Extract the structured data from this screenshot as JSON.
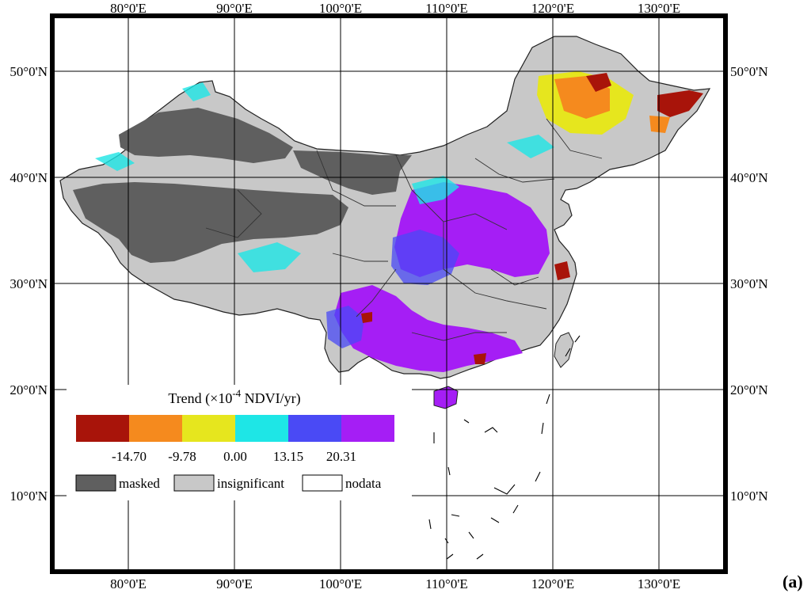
{
  "panel_label": "(a)",
  "axes": {
    "top_lon": [
      "80°0'E",
      "90°0'E",
      "100°0'E",
      "110°0'E",
      "120°0'E",
      "130°0'E"
    ],
    "bottom_lon": [
      "80°0'E",
      "90°0'E",
      "100°0'E",
      "110°0'E",
      "120°0'E",
      "130°0'E"
    ],
    "left_lat": [
      "50°0'N",
      "40°0'N",
      "30°0'N",
      "20°0'N",
      "10°0'N"
    ],
    "right_lat": [
      "50°0'N",
      "40°0'N",
      "30°0'N",
      "20°0'N",
      "10°0'N"
    ]
  },
  "legend": {
    "title_main": "Trend (×10",
    "title_sup": "-4",
    "title_tail": " NDVI/yr)",
    "bins": [
      {
        "color": "#a8140a"
      },
      {
        "color": "#f58a1e"
      },
      {
        "color": "#e6e61e"
      },
      {
        "color": "#1ee6e6"
      },
      {
        "color": "#4a4af5"
      },
      {
        "color": "#a51ef5"
      }
    ],
    "break_values": [
      "-14.70",
      "-9.78",
      "0.00",
      "13.15",
      "20.31"
    ],
    "categories": [
      {
        "label": "masked",
        "color": "#5f5f5f"
      },
      {
        "label": "insignificant",
        "color": "#c8c8c8"
      },
      {
        "label": "nodata",
        "color": "#ffffff"
      }
    ]
  }
}
